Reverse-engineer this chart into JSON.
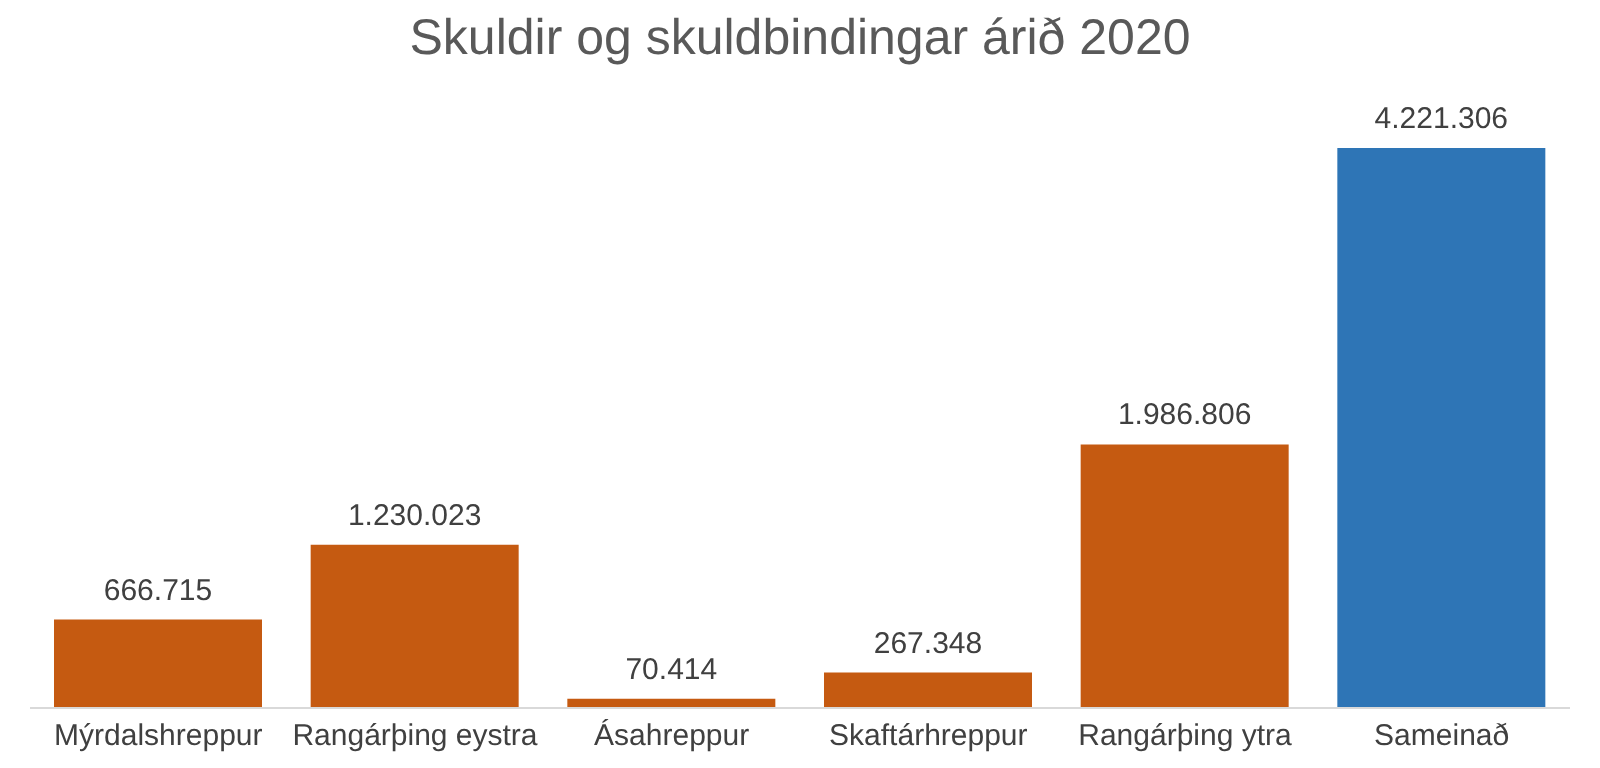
{
  "chart_data": {
    "type": "bar",
    "title": "Skuldir og skuldbindingar árið 2020",
    "categories": [
      "Mýrdalshreppur",
      "Rangárþing eystra",
      "Ásahreppur",
      "Skaftárhreppur",
      "Rangárþing ytra",
      "Sameinað"
    ],
    "values": [
      666715,
      1230023,
      70414,
      267348,
      1986806,
      4221306
    ],
    "value_labels": [
      "666.715",
      "1.230.023",
      "70.414",
      "267.348",
      "1.986.806",
      "4.221.306"
    ],
    "colors": [
      "#c55a11",
      "#c55a11",
      "#c55a11",
      "#c55a11",
      "#c55a11",
      "#2e75b6"
    ],
    "grid": false,
    "legend": false
  }
}
